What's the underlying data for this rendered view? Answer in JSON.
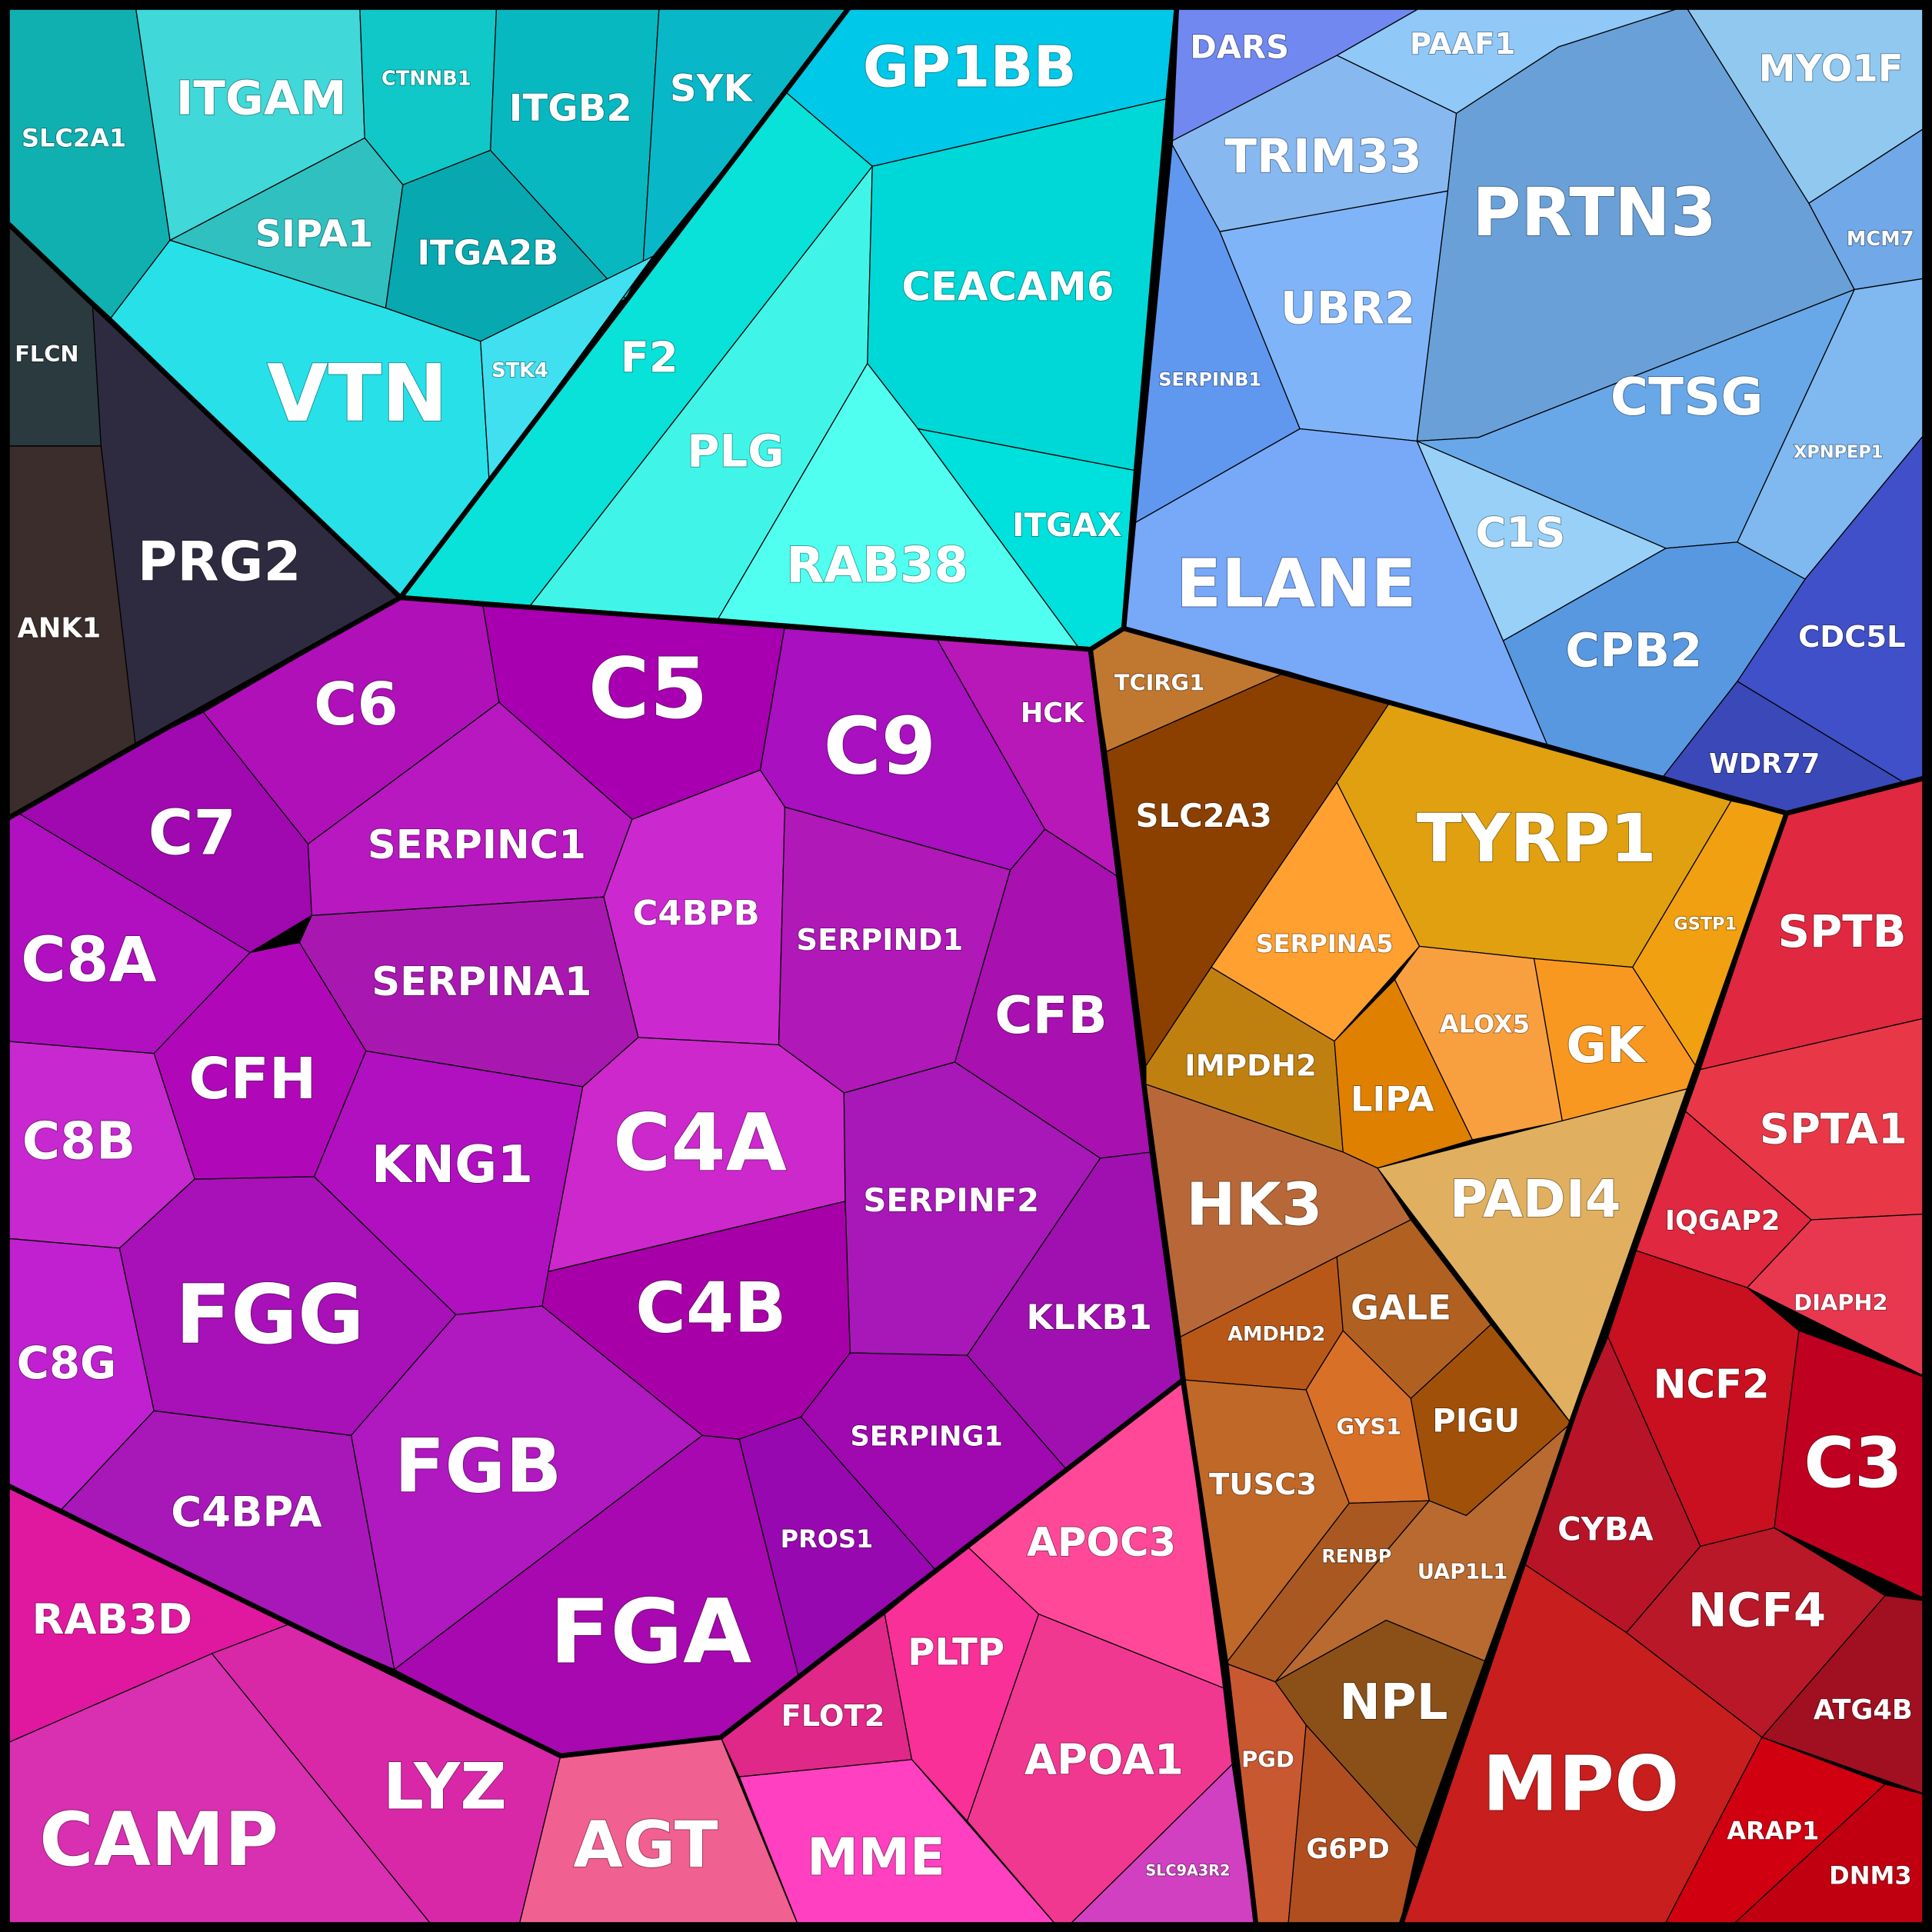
{
  "cells": [
    "SLC2A1",
    "ITGAM",
    "CTNNB1",
    "ITGB2",
    "SYK",
    "SIPA1",
    "ITGA2B",
    "VTN",
    "STK4",
    "FLCN",
    "PRG2",
    "ANK1",
    "GP1BB",
    "F2",
    "PLG",
    "CEACAM6",
    "RAB38",
    "ITGAX",
    "DARS",
    "PAAF1",
    "MYO1F",
    "MCM7",
    "XPNPEP1",
    "CDC5L",
    "WDR77",
    "TRIM33",
    "PRTN3",
    "SERPINB1",
    "UBR2",
    "CTSG",
    "ELANE",
    "C1S",
    "CPB2",
    "TCIRG1",
    "SLC2A3",
    "TYRP1",
    "GSTP1",
    "SERPINA5",
    "IMPDH2",
    "LIPA",
    "ALOX5",
    "GK",
    "HK3",
    "PADI4",
    "AMDHD2",
    "GALE",
    "GYS1",
    "PIGU",
    "TUSC3",
    "RENBP",
    "UAP1L1",
    "NPL",
    "PGD",
    "G6PD",
    "SPTB",
    "SPTA1",
    "IQGAP2",
    "DIAPH2",
    "NCF2",
    "C3",
    "CYBA",
    "NCF4",
    "ATG4B",
    "MPO",
    "ARAP1",
    "DNM3",
    "RAB3D",
    "CAMP",
    "LYZ",
    "AGT",
    "MME",
    "FLOT2",
    "PLTP",
    "APOC3",
    "APOA1",
    "SLC9A3R2",
    "C6",
    "C5",
    "C9",
    "HCK",
    "C7",
    "SERPINC1",
    "C4BPB",
    "SERPIND1",
    "CFB",
    "C8A",
    "SERPINA1",
    "CFH",
    "C8B",
    "KNG1",
    "C4A",
    "C4B",
    "SERPINF2",
    "KLKB1",
    "C8G",
    "FGG",
    "FGB",
    "C4BPA",
    "FGA",
    "PROS1",
    "SERPING1"
  ]
}
